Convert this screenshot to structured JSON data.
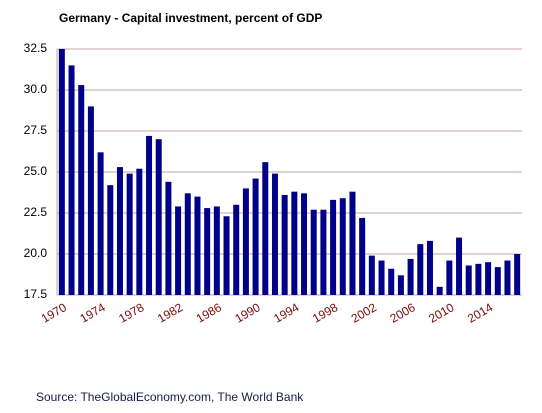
{
  "chart_data": {
    "type": "bar",
    "title": "Germany - Capital investment, percent of GDP",
    "source": "Source: TheGlobalEconomy.com, The World Bank",
    "categories": [
      "1970",
      null,
      null,
      null,
      "1974",
      null,
      null,
      null,
      "1978",
      null,
      null,
      null,
      "1982",
      null,
      null,
      null,
      "1986",
      null,
      null,
      null,
      "1990",
      null,
      null,
      null,
      "1994",
      null,
      null,
      null,
      "1998",
      null,
      null,
      null,
      "2002",
      null,
      null,
      null,
      "2006",
      null,
      null,
      null,
      "2010",
      null,
      null,
      null,
      "2014",
      null,
      null,
      null
    ],
    "values": [
      32.5,
      31.5,
      30.3,
      29.0,
      26.2,
      24.2,
      25.3,
      24.9,
      25.2,
      27.2,
      27.0,
      24.4,
      22.9,
      23.7,
      23.5,
      22.8,
      22.9,
      22.3,
      23.0,
      24.0,
      24.6,
      25.6,
      24.9,
      23.6,
      23.8,
      23.7,
      22.7,
      22.7,
      23.3,
      23.4,
      23.8,
      22.2,
      19.9,
      19.6,
      19.1,
      18.7,
      19.7,
      20.6,
      20.8,
      18.0,
      19.6,
      21.0,
      19.3,
      19.4,
      19.5,
      19.2,
      19.6,
      20.0
    ],
    "color": "#000088",
    "ylim": [
      17.5,
      32.5
    ],
    "yticks": [
      17.5,
      {
        "value": 20,
        "label": "20.0"
      },
      22.5,
      {
        "value": 25,
        "label": "25.0"
      },
      27.5,
      {
        "value": 30,
        "label": "30.0"
      },
      32.5
    ],
    "grid": true
  }
}
